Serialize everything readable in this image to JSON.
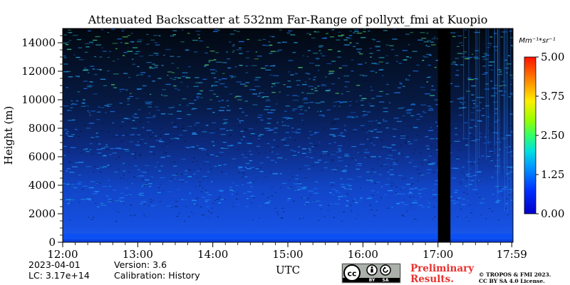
{
  "chart_data": {
    "type": "heatmap",
    "title": "Attenuated Backscatter at 532nm Far-Range of pollyxt_fmi at Kuopio",
    "xlabel": "UTC",
    "ylabel": "Height (m)",
    "x_range": [
      "12:00",
      "17:59"
    ],
    "x_ticks": [
      "12:00",
      "13:00",
      "14:00",
      "15:00",
      "16:00",
      "17:00",
      "17:59"
    ],
    "x_tick_minutes": [
      0,
      60,
      120,
      180,
      240,
      300,
      359
    ],
    "ylim": [
      0,
      15000
    ],
    "y_ticks": [
      0,
      2000,
      4000,
      6000,
      8000,
      10000,
      12000,
      14000
    ],
    "colorbar": {
      "unit": "Mm⁻¹*sr⁻¹",
      "range": [
        0,
        5
      ],
      "ticks": [
        "0.00",
        "1.25",
        "2.50",
        "3.75",
        "5.00"
      ],
      "colormap": "jet"
    },
    "no_data_interval": [
      "17:00",
      "17:10"
    ]
  },
  "footer": {
    "date": "2023-04-01",
    "lc": "LC: 3.17e+14",
    "version": "Version: 3.6",
    "calibration": "Calibration: History",
    "preliminary_line1": "Preliminary",
    "preliminary_line2": "Results.",
    "copyright_line1": "© TROPOS & FMI 2023.",
    "copyright_line2": "CC BY SA 4.0 License.",
    "license_badge": {
      "cc": "cc",
      "by": "BY",
      "sa": "SA"
    }
  },
  "colors": {
    "no_data": "#000000",
    "preliminary": "#e8312f",
    "background": "#ffffff"
  }
}
